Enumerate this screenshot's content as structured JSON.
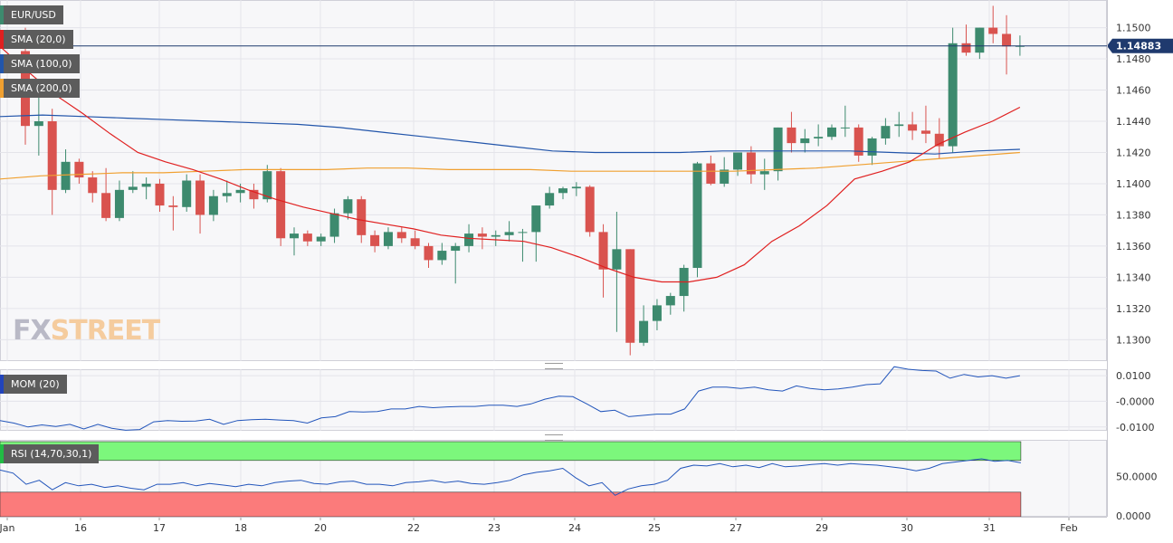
{
  "chart_data": [
    {
      "type": "candlestick",
      "symbol": "EUR/USD",
      "ylim": [
        1.1288,
        1.1516
      ],
      "y_ticks": [
        "1.1500",
        "1.1480",
        "1.1460",
        "1.1440",
        "1.1420",
        "1.1400",
        "1.1380",
        "1.1360",
        "1.1340",
        "1.1320",
        "1.1300"
      ],
      "last_price_label": "1.14883",
      "last_price": 1.14883,
      "colors": {
        "up": "#3d8a6e",
        "down": "#d9534f",
        "sma20": "#e02020",
        "sma100": "#2255aa",
        "sma200": "#f0a030",
        "last_line": "#1f3a6e"
      },
      "indicators": [
        {
          "label": "SMA (20,0)",
          "color": "#e02020"
        },
        {
          "label": "SMA (100,0)",
          "color": "#2255aa"
        },
        {
          "label": "SMA (200,0)",
          "color": "#f0a030"
        }
      ],
      "candles": [
        [
          1.1485,
          1.15,
          1.1425,
          1.1437
        ],
        [
          1.1437,
          1.1458,
          1.1418,
          1.144
        ],
        [
          1.144,
          1.1448,
          1.138,
          1.1396
        ],
        [
          1.1396,
          1.1422,
          1.1394,
          1.1414
        ],
        [
          1.1414,
          1.1416,
          1.14,
          1.1404
        ],
        [
          1.1404,
          1.1408,
          1.1388,
          1.1394
        ],
        [
          1.1394,
          1.141,
          1.1376,
          1.1378
        ],
        [
          1.1378,
          1.1402,
          1.1376,
          1.1396
        ],
        [
          1.1396,
          1.1408,
          1.1394,
          1.1398
        ],
        [
          1.1398,
          1.1404,
          1.139,
          1.14
        ],
        [
          1.14,
          1.1403,
          1.1382,
          1.1386
        ],
        [
          1.1386,
          1.1392,
          1.137,
          1.1385
        ],
        [
          1.1385,
          1.1406,
          1.1382,
          1.1402
        ],
        [
          1.1402,
          1.1406,
          1.1368,
          1.138
        ],
        [
          1.138,
          1.1396,
          1.1376,
          1.1392
        ],
        [
          1.1392,
          1.1402,
          1.1388,
          1.1394
        ],
        [
          1.1394,
          1.14,
          1.1388,
          1.1396
        ],
        [
          1.1396,
          1.14,
          1.1384,
          1.139
        ],
        [
          1.139,
          1.1412,
          1.1388,
          1.1408
        ],
        [
          1.1408,
          1.141,
          1.136,
          1.1365
        ],
        [
          1.1365,
          1.1372,
          1.1354,
          1.1368
        ],
        [
          1.1368,
          1.137,
          1.136,
          1.1363
        ],
        [
          1.1363,
          1.1368,
          1.136,
          1.1366
        ],
        [
          1.1366,
          1.1384,
          1.1362,
          1.1381
        ],
        [
          1.1381,
          1.1392,
          1.1377,
          1.139
        ],
        [
          1.139,
          1.1392,
          1.1362,
          1.1367
        ],
        [
          1.1367,
          1.137,
          1.1356,
          1.136
        ],
        [
          1.136,
          1.1372,
          1.1358,
          1.1369
        ],
        [
          1.1369,
          1.1372,
          1.1362,
          1.1365
        ],
        [
          1.1365,
          1.137,
          1.1358,
          1.136
        ],
        [
          1.136,
          1.1362,
          1.1346,
          1.1351
        ],
        [
          1.1351,
          1.1362,
          1.1348,
          1.1357
        ],
        [
          1.1357,
          1.1362,
          1.1336,
          1.136
        ],
        [
          1.136,
          1.1374,
          1.1356,
          1.1368
        ],
        [
          1.1368,
          1.1372,
          1.1358,
          1.1366
        ],
        [
          1.1366,
          1.137,
          1.136,
          1.1367
        ],
        [
          1.1367,
          1.1376,
          1.1363,
          1.1369
        ],
        [
          1.1369,
          1.1371,
          1.135,
          1.1369
        ],
        [
          1.1369,
          1.1386,
          1.135,
          1.1386
        ],
        [
          1.1386,
          1.1398,
          1.1384,
          1.1394
        ],
        [
          1.1394,
          1.1398,
          1.139,
          1.1397
        ],
        [
          1.1397,
          1.1401,
          1.1392,
          1.1398
        ],
        [
          1.1398,
          1.1399,
          1.1366,
          1.1369
        ],
        [
          1.1369,
          1.1374,
          1.1327,
          1.1345
        ],
        [
          1.1345,
          1.1382,
          1.1305,
          1.1358
        ],
        [
          1.1358,
          1.1358,
          1.129,
          1.1298
        ],
        [
          1.1298,
          1.1322,
          1.1296,
          1.1312
        ],
        [
          1.1312,
          1.1326,
          1.1306,
          1.1322
        ],
        [
          1.1322,
          1.133,
          1.1316,
          1.1328
        ],
        [
          1.1328,
          1.1348,
          1.1318,
          1.1346
        ],
        [
          1.1346,
          1.1414,
          1.134,
          1.1413
        ],
        [
          1.1413,
          1.1418,
          1.1399,
          1.14
        ],
        [
          1.14,
          1.1417,
          1.1398,
          1.1409
        ],
        [
          1.1409,
          1.142,
          1.1405,
          1.142
        ],
        [
          1.142,
          1.1424,
          1.14,
          1.1406
        ],
        [
          1.1406,
          1.1416,
          1.1396,
          1.1408
        ],
        [
          1.1408,
          1.1436,
          1.1402,
          1.1436
        ],
        [
          1.1436,
          1.1446,
          1.142,
          1.1426
        ],
        [
          1.1426,
          1.1435,
          1.142,
          1.1429
        ],
        [
          1.1429,
          1.1438,
          1.1424,
          1.143
        ],
        [
          1.143,
          1.1438,
          1.1428,
          1.1436
        ],
        [
          1.1436,
          1.145,
          1.143,
          1.1436
        ],
        [
          1.1436,
          1.1438,
          1.1414,
          1.1418
        ],
        [
          1.1418,
          1.143,
          1.1412,
          1.1429
        ],
        [
          1.1429,
          1.1442,
          1.1425,
          1.1437
        ],
        [
          1.1437,
          1.1446,
          1.143,
          1.1438
        ],
        [
          1.1438,
          1.1446,
          1.1428,
          1.1434
        ],
        [
          1.1434,
          1.145,
          1.1426,
          1.1432
        ],
        [
          1.1432,
          1.1442,
          1.1416,
          1.1424
        ],
        [
          1.1424,
          1.15,
          1.142,
          1.149
        ],
        [
          1.149,
          1.1502,
          1.1482,
          1.1484
        ],
        [
          1.1484,
          1.15,
          1.148,
          1.15
        ],
        [
          1.15,
          1.1514,
          1.149,
          1.1496
        ],
        [
          1.1496,
          1.1508,
          1.147,
          1.1488
        ],
        [
          1.1488,
          1.1495,
          1.1482,
          1.14883
        ]
      ],
      "sma20": [
        1.1488,
        1.1472,
        1.1457,
        1.1445,
        1.1432,
        1.142,
        1.1414,
        1.1409,
        1.1403,
        1.1396,
        1.139,
        1.1385,
        1.1381,
        1.1377,
        1.1374,
        1.1371,
        1.1367,
        1.1365,
        1.1364,
        1.1363,
        1.1359,
        1.1353,
        1.1346,
        1.134,
        1.1337,
        1.1337,
        1.134,
        1.1348,
        1.1363,
        1.1373,
        1.1386,
        1.1403,
        1.1408,
        1.1414,
        1.1425,
        1.1433,
        1.144,
        1.1449
      ],
      "sma100": [
        1.1443,
        1.1444,
        1.1443,
        1.1442,
        1.1441,
        1.144,
        1.1439,
        1.1438,
        1.1436,
        1.1433,
        1.143,
        1.1427,
        1.1424,
        1.1421,
        1.142,
        1.142,
        1.142,
        1.1421,
        1.1421,
        1.1421,
        1.1421,
        1.142,
        1.1419,
        1.1421,
        1.1422
      ],
      "sma200": [
        1.1403,
        1.1405,
        1.1406,
        1.1407,
        1.1407,
        1.1408,
        1.1409,
        1.1409,
        1.1409,
        1.141,
        1.141,
        1.1409,
        1.1409,
        1.1409,
        1.1408,
        1.1408,
        1.1408,
        1.1408,
        1.1408,
        1.1409,
        1.141,
        1.1412,
        1.1414,
        1.1416,
        1.1418,
        1.142
      ]
    },
    {
      "type": "line",
      "label": "MOM (20)",
      "ylim": [
        -0.0115,
        0.0125
      ],
      "y_ticks": [
        "0.0100",
        "-0.0000",
        "-0.0100"
      ],
      "colors": {
        "line": "#2255bb",
        "label_bar": "#2244bb"
      },
      "values": [
        -0.0075,
        -0.0085,
        -0.01,
        -0.0092,
        -0.0098,
        -0.009,
        -0.0108,
        -0.009,
        -0.0105,
        -0.0113,
        -0.011,
        -0.008,
        -0.0075,
        -0.0078,
        -0.0077,
        -0.007,
        -0.009,
        -0.0075,
        -0.0072,
        -0.007,
        -0.0073,
        -0.0075,
        -0.0085,
        -0.0065,
        -0.006,
        -0.004,
        -0.0042,
        -0.004,
        -0.003,
        -0.003,
        -0.002,
        -0.0025,
        -0.0022,
        -0.002,
        -0.002,
        -0.0015,
        -0.0015,
        -0.002,
        -0.001,
        0.0008,
        0.002,
        0.0018,
        -0.001,
        -0.004,
        -0.0035,
        -0.006,
        -0.0055,
        -0.005,
        -0.005,
        -0.003,
        0.004,
        0.0055,
        0.0055,
        0.005,
        0.0055,
        0.0045,
        0.004,
        0.006,
        0.005,
        0.0045,
        0.0048,
        0.0055,
        0.0065,
        0.0068,
        0.0135,
        0.0125,
        0.012,
        0.0118,
        0.009,
        0.0105,
        0.0095,
        0.01,
        0.009,
        0.01
      ]
    },
    {
      "type": "line",
      "label": "RSI (14,70,30,1)",
      "ylim": [
        -1,
        96
      ],
      "y_ticks": [
        "50.0000",
        "0.0000"
      ],
      "overbought": 70,
      "oversold": 30,
      "colors": {
        "line": "#2255bb",
        "overbought_fill": "#7cf77c",
        "oversold_fill": "#fb7b7b",
        "label_bar": "#22bb44"
      },
      "values": [
        58,
        54,
        40,
        45,
        33,
        42,
        38,
        40,
        36,
        38,
        35,
        33,
        40,
        40,
        42,
        38,
        41,
        39,
        37,
        40,
        38,
        42,
        44,
        45,
        41,
        40,
        43,
        44,
        40,
        40,
        38,
        42,
        43,
        45,
        42,
        44,
        41,
        40,
        42,
        45,
        52,
        55,
        57,
        60,
        48,
        38,
        42,
        26,
        34,
        38,
        40,
        45,
        60,
        64,
        63,
        66,
        62,
        64,
        61,
        66,
        62,
        63,
        65,
        66,
        64,
        66,
        65,
        64,
        62,
        60,
        57,
        60,
        66,
        68,
        70,
        72,
        69,
        70,
        67
      ]
    }
  ],
  "x_labels": [
    "Jan",
    "16",
    "17",
    "18",
    "20",
    "22",
    "23",
    "24",
    "25",
    "27",
    "29",
    "30",
    "31",
    "Feb"
  ]
}
